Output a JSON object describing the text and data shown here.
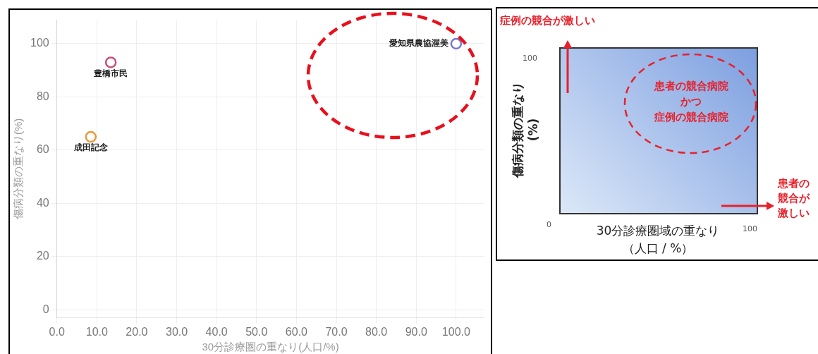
{
  "chart_data": [
    {
      "type": "scatter",
      "xlabel": "30分診療圏の重なり(人口/%)",
      "ylabel": "傷病分類の重なり(%)",
      "xlim": [
        0,
        107
      ],
      "ylim": [
        -3,
        109
      ],
      "xticks": [
        {
          "value": 0,
          "label": "0.0"
        },
        {
          "value": 10,
          "label": "10.0"
        },
        {
          "value": 20,
          "label": "20.0"
        },
        {
          "value": 30,
          "label": "30.0"
        },
        {
          "value": 40,
          "label": "40.0"
        },
        {
          "value": 50,
          "label": "50.0"
        },
        {
          "value": 60,
          "label": "60.0"
        },
        {
          "value": 70,
          "label": "70.0"
        },
        {
          "value": 80,
          "label": "80.0"
        },
        {
          "value": 90,
          "label": "90.0"
        },
        {
          "value": 100,
          "label": "100.0"
        }
      ],
      "yticks": [
        0,
        20,
        40,
        60,
        80,
        100
      ],
      "grid": true,
      "marker": "circle",
      "legend": false,
      "series": [
        {
          "name": "豊橋市民",
          "color": "#c4507c",
          "x": [
            13.5
          ],
          "values": [
            93
          ]
        },
        {
          "name": "成田記念",
          "color": "#e89a3c",
          "x": [
            8.5
          ],
          "values": [
            65
          ]
        },
        {
          "name": "愛知県農協渥美",
          "color": "#7a78cc",
          "x": [
            100
          ],
          "values": [
            100
          ]
        }
      ]
    },
    {
      "type": "other",
      "xlabel": "30分診療圏域の重なり（人口 / %）",
      "ylabel": "傷病分類の重なり(%)",
      "annotations": [
        "症例の競合が激しい",
        "患者の競合病院",
        "かつ",
        "症例の競合病院",
        "患者の競合が激しい",
        "0",
        "100",
        "100"
      ]
    }
  ]
}
